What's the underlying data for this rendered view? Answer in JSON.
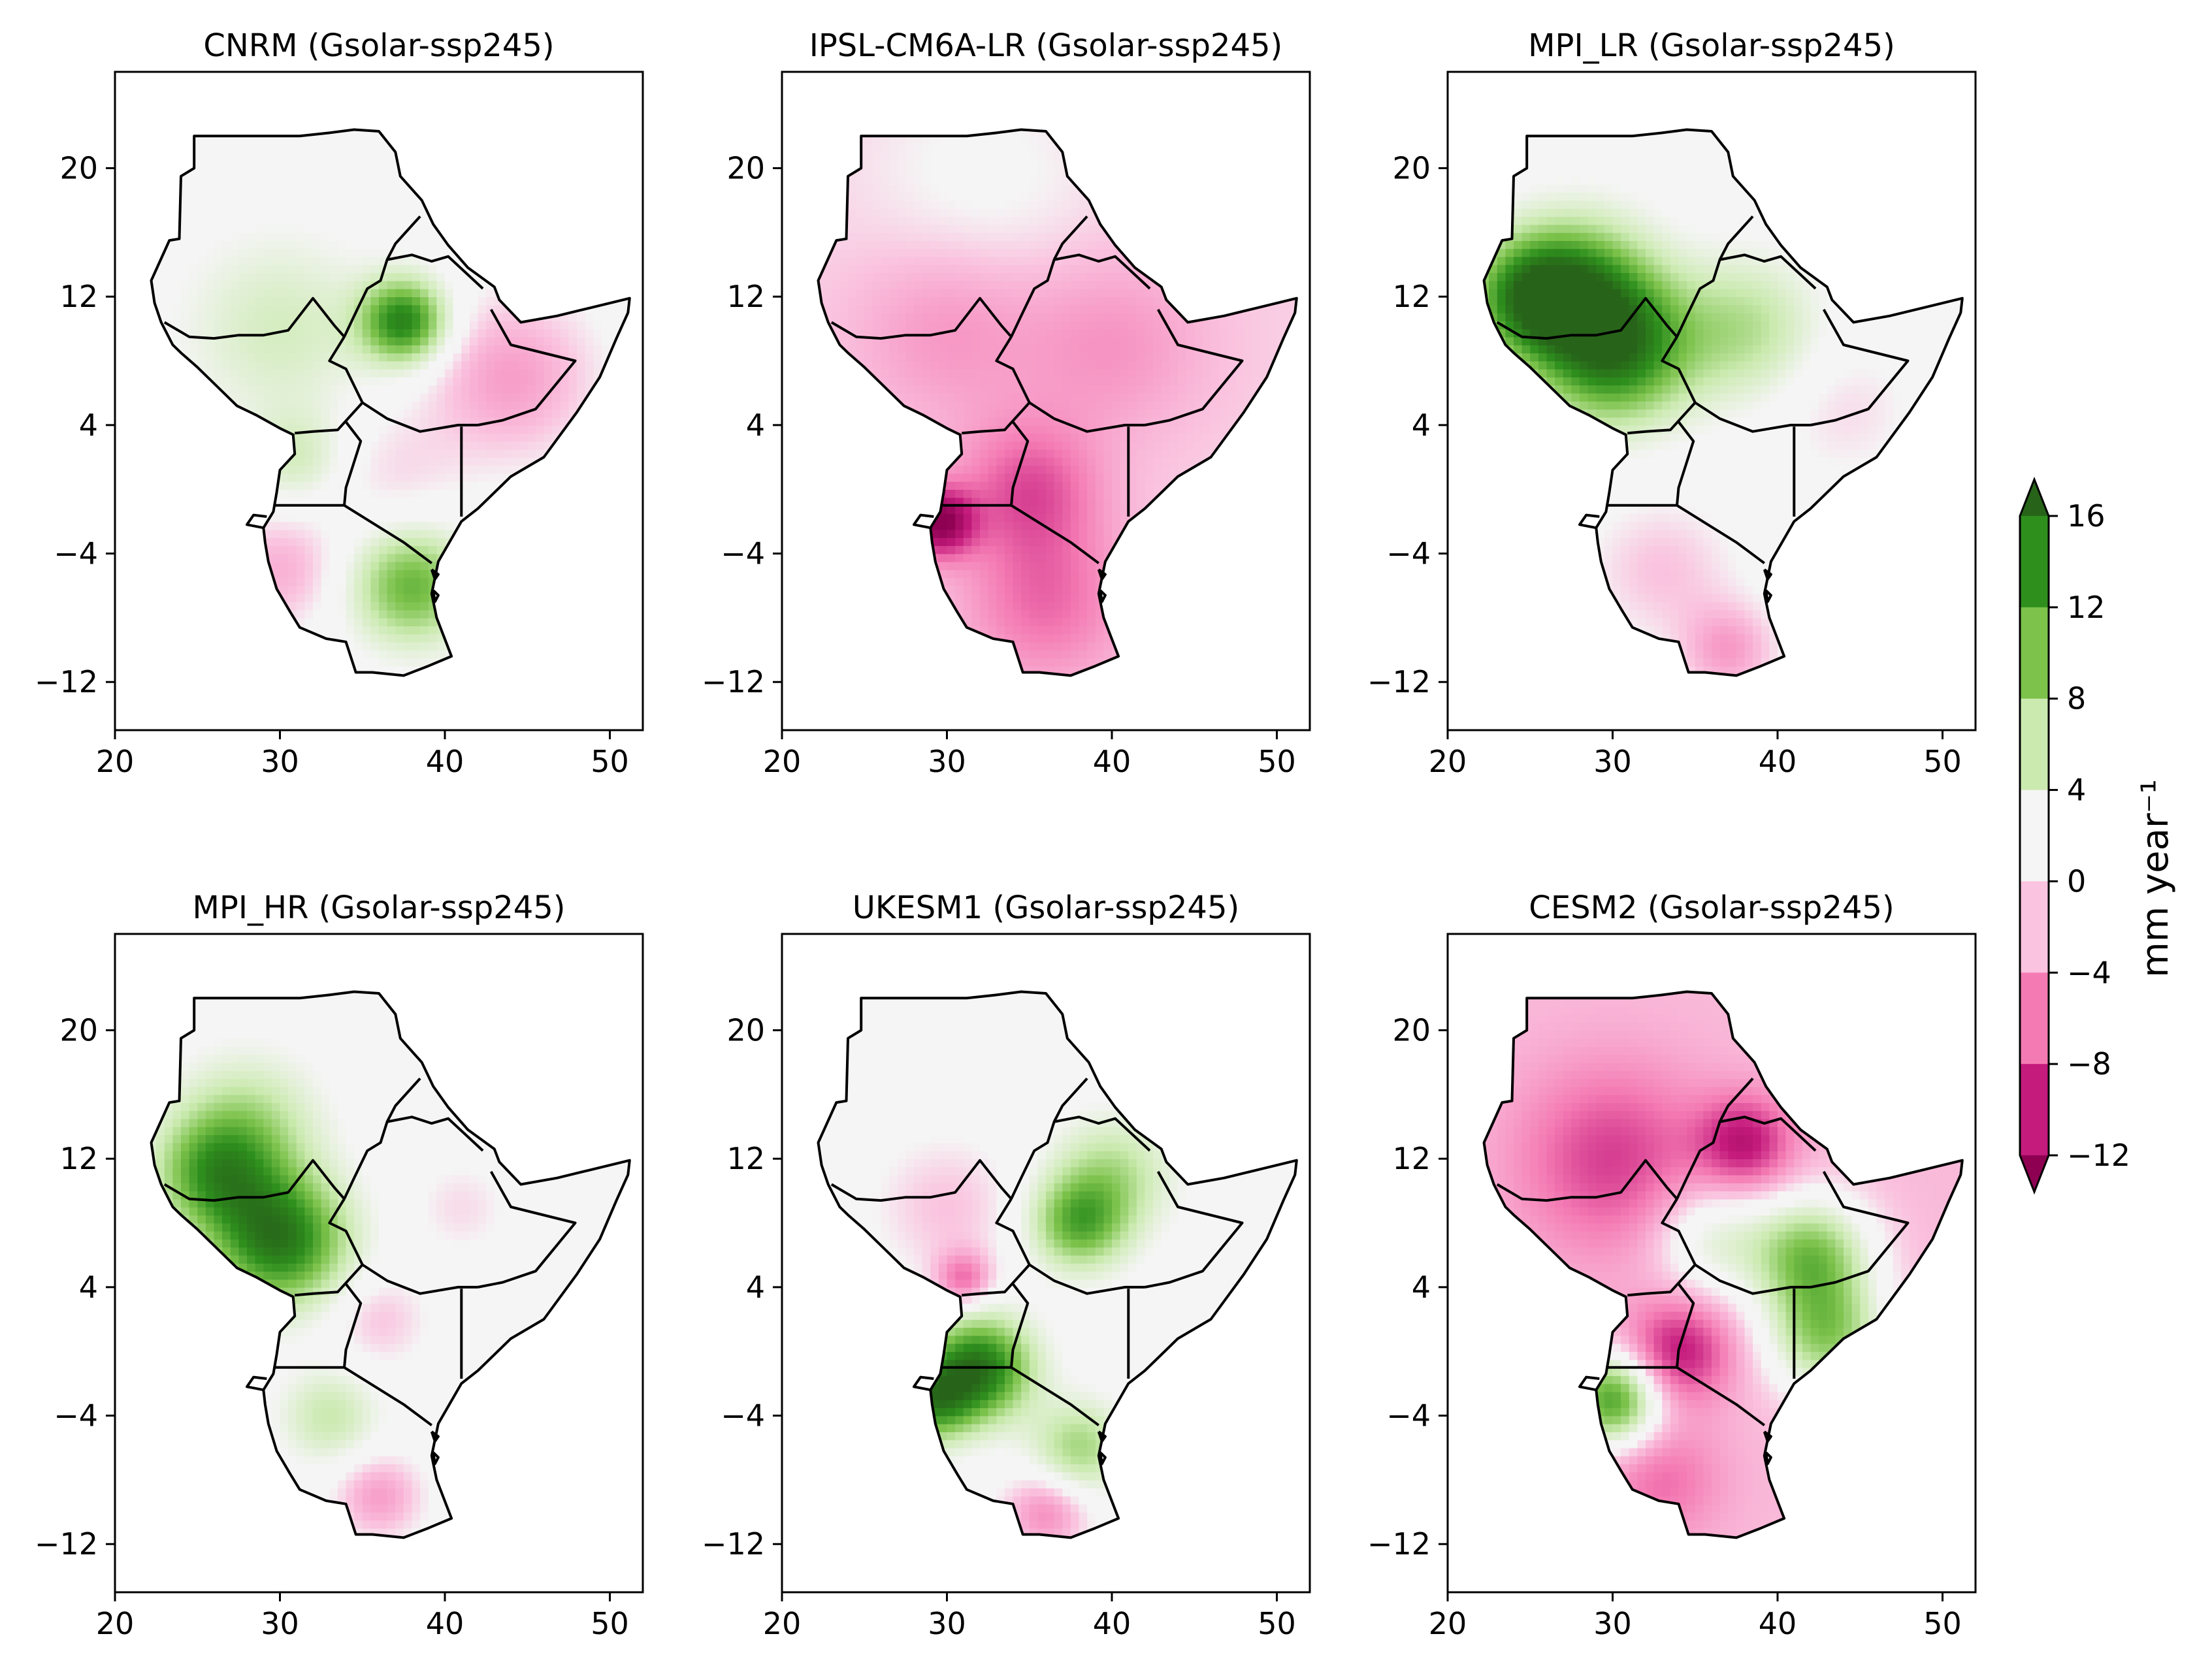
{
  "figure": {
    "map_extent": {
      "lon": [
        20,
        52
      ],
      "lat": [
        -15,
        26
      ]
    },
    "x_ticks": [
      "20",
      "30",
      "40",
      "50"
    ],
    "y_ticks": [
      "20",
      "12",
      "4",
      "−4",
      "−12"
    ],
    "x_tick_values": [
      20,
      30,
      40,
      50
    ],
    "y_tick_values": [
      20,
      12,
      4,
      -4,
      -12
    ]
  },
  "colorbar": {
    "label": "mm year⁻¹",
    "bounds": [
      -12,
      -8,
      -4,
      0,
      4,
      8,
      12,
      16
    ],
    "tick_labels": [
      "16",
      "12",
      "8",
      "4",
      "0",
      "−4",
      "−8",
      "−12"
    ],
    "colors": [
      "#c51b7d",
      "#f47ab3",
      "#fac3df",
      "#f5f5f5",
      "#cbeab0",
      "#7cc24b",
      "#2e8f1d"
    ],
    "extend_low_color": "#8e0152",
    "extend_high_color": "#276419"
  },
  "chart_data": [
    {
      "type": "heatmap",
      "title": "CNRM (Gsolar-ssp245)",
      "xlim": [
        20,
        52
      ],
      "ylim": [
        -15,
        26
      ],
      "zlim": [
        -12,
        16
      ],
      "units": "mm year⁻¹",
      "base": 1.0,
      "blobs": [
        {
          "lon": 37.5,
          "lat": 10.5,
          "value": 14,
          "spread": 1.8
        },
        {
          "lon": 30,
          "lat": 10,
          "value": 4,
          "spread": 4
        },
        {
          "lon": 38,
          "lat": -6,
          "value": 10,
          "spread": 2.5
        },
        {
          "lon": 31,
          "lat": 2,
          "value": 4,
          "spread": 2
        },
        {
          "lon": 44,
          "lat": 7,
          "value": -5,
          "spread": 3.5
        },
        {
          "lon": 30,
          "lat": -5,
          "value": -4,
          "spread": 2.5
        },
        {
          "lon": 37,
          "lat": 1,
          "value": -2,
          "spread": 3
        }
      ]
    },
    {
      "type": "heatmap",
      "title": "IPSL-CM6A-LR (Gsolar-ssp245)",
      "xlim": [
        20,
        52
      ],
      "ylim": [
        -15,
        26
      ],
      "zlim": [
        -12,
        16
      ],
      "units": "mm year⁻¹",
      "base": -1.5,
      "blobs": [
        {
          "lon": 29.5,
          "lat": -2,
          "value": -12,
          "spread": 1.5
        },
        {
          "lon": 35,
          "lat": 0,
          "value": -6,
          "spread": 3
        },
        {
          "lon": 36,
          "lat": -7,
          "value": -5,
          "spread": 3.5
        },
        {
          "lon": 40,
          "lat": 9,
          "value": -3,
          "spread": 4
        },
        {
          "lon": 30,
          "lat": 10,
          "value": -3,
          "spread": 4
        },
        {
          "lon": 32,
          "lat": 19,
          "value": 2,
          "spread": 5
        }
      ]
    },
    {
      "type": "heatmap",
      "title": "MPI_LR (Gsolar-ssp245)",
      "xlim": [
        20,
        52
      ],
      "ylim": [
        -15,
        26
      ],
      "zlim": [
        -12,
        16
      ],
      "units": "mm year⁻¹",
      "base": 1.0,
      "blobs": [
        {
          "lon": 30,
          "lat": 9,
          "value": 16,
          "spread": 3.2
        },
        {
          "lon": 25,
          "lat": 12,
          "value": 13,
          "spread": 2.5
        },
        {
          "lon": 28,
          "lat": 13,
          "value": 8,
          "spread": 3
        },
        {
          "lon": 38,
          "lat": 10,
          "value": 6,
          "spread": 3
        },
        {
          "lon": 37,
          "lat": -10,
          "value": -5,
          "spread": 2
        },
        {
          "lon": 33,
          "lat": -5,
          "value": -3,
          "spread": 3
        },
        {
          "lon": 44,
          "lat": 5,
          "value": -2,
          "spread": 3
        }
      ]
    },
    {
      "type": "heatmap",
      "title": "MPI_HR (Gsolar-ssp245)",
      "xlim": [
        20,
        52
      ],
      "ylim": [
        -15,
        26
      ],
      "zlim": [
        -12,
        16
      ],
      "units": "mm year⁻¹",
      "base": 1.0,
      "blobs": [
        {
          "lon": 30,
          "lat": 7,
          "value": 15,
          "spread": 2.8
        },
        {
          "lon": 26,
          "lat": 11,
          "value": 10,
          "spread": 2.5
        },
        {
          "lon": 28,
          "lat": 14,
          "value": 6,
          "spread": 3
        },
        {
          "lon": 33,
          "lat": -4,
          "value": 5,
          "spread": 2
        },
        {
          "lon": 36,
          "lat": -9,
          "value": -5,
          "spread": 1.8
        },
        {
          "lon": 36,
          "lat": 2,
          "value": -3,
          "spread": 2
        },
        {
          "lon": 41,
          "lat": 9,
          "value": -2,
          "spread": 2
        }
      ]
    },
    {
      "type": "heatmap",
      "title": "UKESM1 (Gsolar-ssp245)",
      "xlim": [
        20,
        52
      ],
      "ylim": [
        -15,
        26
      ],
      "zlim": [
        -12,
        16
      ],
      "units": "mm year⁻¹",
      "base": 1.0,
      "blobs": [
        {
          "lon": 32,
          "lat": -1,
          "value": 15,
          "spread": 2.2
        },
        {
          "lon": 29,
          "lat": -3,
          "value": 12,
          "spread": 1.8
        },
        {
          "lon": 38,
          "lat": 8,
          "value": 10,
          "spread": 2
        },
        {
          "lon": 40,
          "lat": 11,
          "value": 6,
          "spread": 2.5
        },
        {
          "lon": 38,
          "lat": -6,
          "value": 7,
          "spread": 2
        },
        {
          "lon": 36,
          "lat": -10,
          "value": -6,
          "spread": 1.8
        },
        {
          "lon": 31,
          "lat": 4.5,
          "value": -7,
          "spread": 1.2
        },
        {
          "lon": 30,
          "lat": 9,
          "value": -3,
          "spread": 3
        }
      ]
    },
    {
      "type": "heatmap",
      "title": "CESM2 (Gsolar-ssp245)",
      "xlim": [
        20,
        52
      ],
      "ylim": [
        -15,
        26
      ],
      "zlim": [
        -12,
        16
      ],
      "units": "mm year⁻¹",
      "base": -2.5,
      "blobs": [
        {
          "lon": 30,
          "lat": -3,
          "value": 15,
          "spread": 2
        },
        {
          "lon": 42,
          "lat": 6,
          "value": 12,
          "spread": 2.5
        },
        {
          "lon": 43,
          "lat": 1,
          "value": 11,
          "spread": 2.5
        },
        {
          "lon": 36,
          "lat": 7,
          "value": 6,
          "spread": 2.5
        },
        {
          "lon": 34,
          "lat": 0,
          "value": -8,
          "spread": 2.2
        },
        {
          "lon": 38,
          "lat": 13,
          "value": -8,
          "spread": 2
        },
        {
          "lon": 30,
          "lat": 12,
          "value": -6,
          "spread": 4
        },
        {
          "lon": 33,
          "lat": -8,
          "value": -4,
          "spread": 2.5
        }
      ]
    }
  ]
}
